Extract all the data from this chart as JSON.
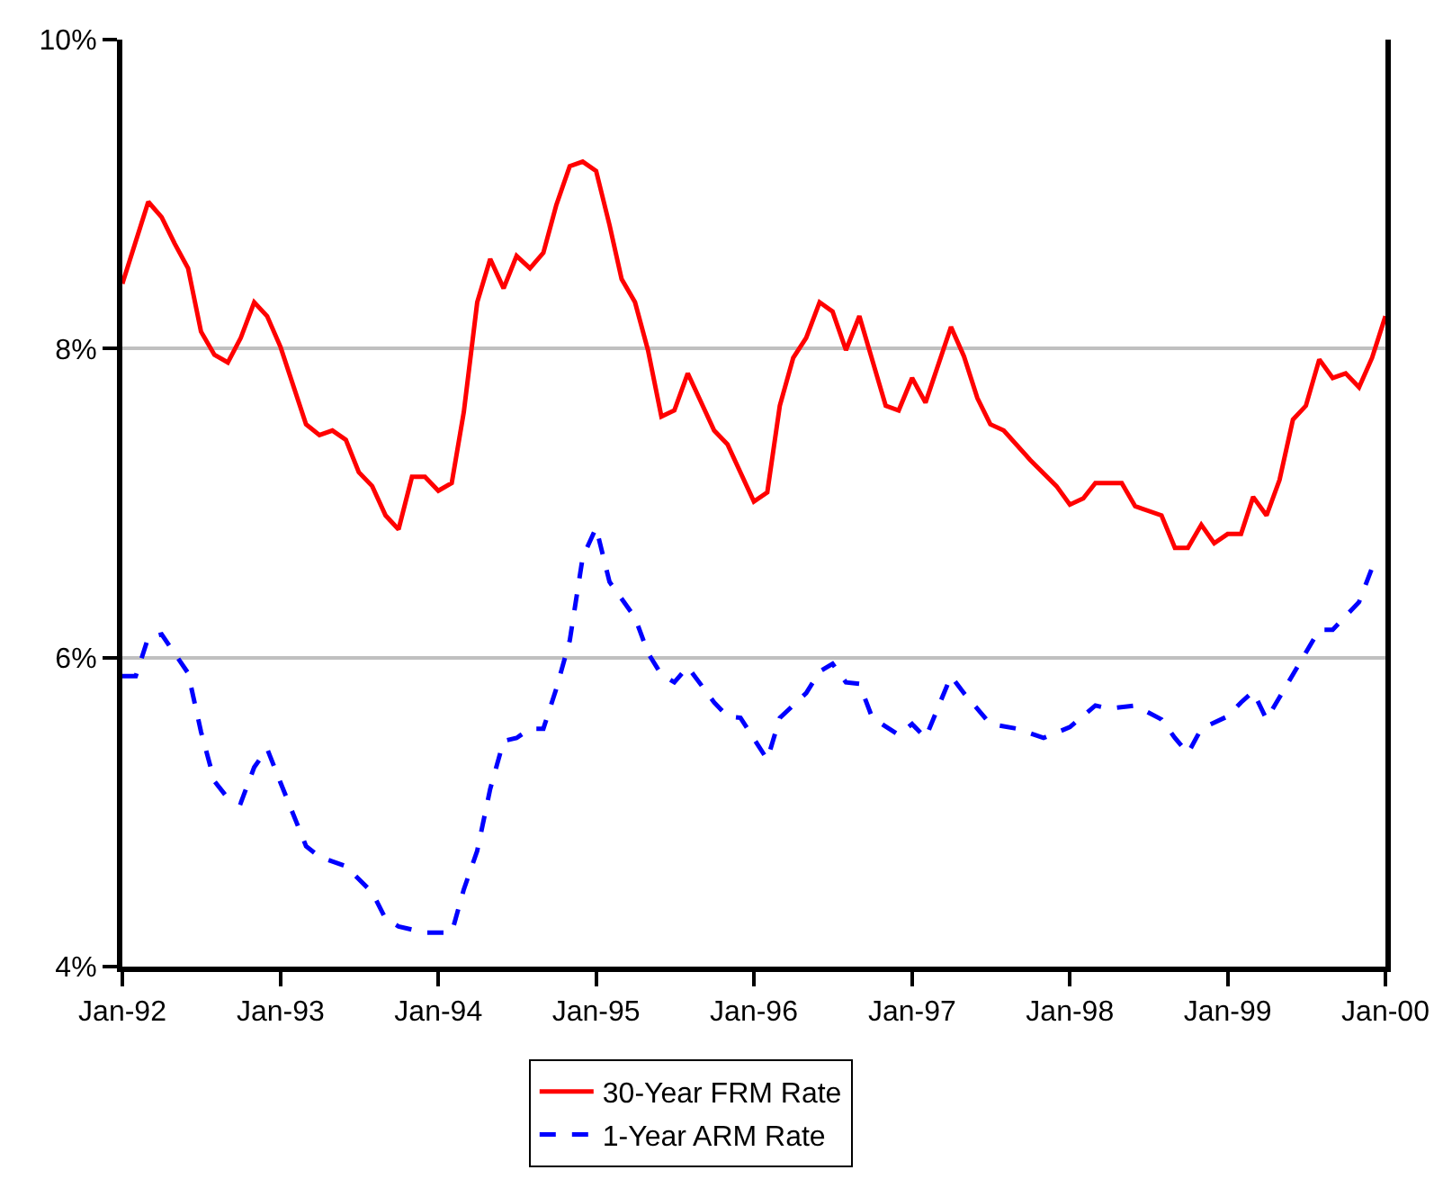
{
  "chart_data": {
    "type": "line",
    "xlim": [
      "1992-01",
      "2000-01"
    ],
    "xticks": [
      {
        "value": "1992-01",
        "label": "Jan-92"
      },
      {
        "value": "1993-01",
        "label": "Jan-93"
      },
      {
        "value": "1994-01",
        "label": "Jan-94"
      },
      {
        "value": "1995-01",
        "label": "Jan-95"
      },
      {
        "value": "1996-01",
        "label": "Jan-96"
      },
      {
        "value": "1997-01",
        "label": "Jan-97"
      },
      {
        "value": "1998-01",
        "label": "Jan-98"
      },
      {
        "value": "1999-01",
        "label": "Jan-99"
      },
      {
        "value": "2000-01",
        "label": "Jan-00"
      }
    ],
    "ylim": [
      4,
      10
    ],
    "yticks": [
      {
        "value": 4,
        "label": "4%"
      },
      {
        "value": 6,
        "label": "6%"
      },
      {
        "value": 8,
        "label": "8%"
      },
      {
        "value": 10,
        "label": "10%"
      }
    ],
    "grid": "y",
    "legend": "bottom",
    "marker": "none",
    "series": [
      {
        "name": "30-Year FRM Rate",
        "color": "#ff0000",
        "line_style": "solid",
        "x": [
          "1992-01",
          "1992-03",
          "1992-04",
          "1992-05",
          "1992-06",
          "1992-07",
          "1992-08",
          "1992-09",
          "1992-10",
          "1992-11",
          "1992-12",
          "1993-01",
          "1993-03",
          "1993-04",
          "1993-05",
          "1993-06",
          "1993-07",
          "1993-08",
          "1993-09",
          "1993-10",
          "1993-11",
          "1993-12",
          "1994-01",
          "1994-02",
          "1994-03",
          "1994-04",
          "1994-05",
          "1994-06",
          "1994-07",
          "1994-08",
          "1994-09",
          "1994-10",
          "1994-11",
          "1994-12",
          "1995-01",
          "1995-02",
          "1995-03",
          "1995-04",
          "1995-05",
          "1995-06",
          "1995-07",
          "1995-08",
          "1995-10",
          "1995-11",
          "1996-01",
          "1996-02",
          "1996-03",
          "1996-04",
          "1996-05",
          "1996-06",
          "1996-07",
          "1996-08",
          "1996-09",
          "1996-11",
          "1996-12",
          "1997-01",
          "1997-02",
          "1997-04",
          "1997-05",
          "1997-06",
          "1997-07",
          "1997-08",
          "1997-10",
          "1997-12",
          "1998-01",
          "1998-02",
          "1998-03",
          "1998-05",
          "1998-06",
          "1998-08",
          "1998-09",
          "1998-10",
          "1998-11",
          "1998-12",
          "1999-01",
          "1999-02",
          "1999-03",
          "1999-04",
          "1999-05",
          "1999-06",
          "1999-07",
          "1999-08",
          "1999-09",
          "1999-10",
          "1999-11",
          "1999-12",
          "2000-01"
        ],
        "values": [
          8.42,
          8.95,
          8.85,
          8.68,
          8.52,
          8.11,
          7.96,
          7.91,
          8.07,
          8.3,
          8.21,
          8.01,
          7.51,
          7.44,
          7.47,
          7.41,
          7.2,
          7.11,
          6.92,
          6.83,
          7.17,
          7.17,
          7.08,
          7.13,
          7.59,
          8.3,
          8.58,
          8.39,
          8.6,
          8.52,
          8.62,
          8.93,
          9.18,
          9.21,
          9.15,
          8.8,
          8.45,
          8.3,
          7.99,
          7.56,
          7.6,
          7.84,
          7.47,
          7.38,
          7.01,
          7.07,
          7.63,
          7.94,
          8.07,
          8.3,
          8.24,
          7.99,
          8.21,
          7.63,
          7.6,
          7.81,
          7.65,
          8.14,
          7.95,
          7.68,
          7.51,
          7.47,
          7.28,
          7.11,
          6.99,
          7.03,
          7.13,
          7.13,
          6.98,
          6.92,
          6.71,
          6.71,
          6.86,
          6.74,
          6.8,
          6.8,
          7.04,
          6.92,
          7.15,
          7.54,
          7.63,
          7.93,
          7.81,
          7.84,
          7.75,
          7.94,
          8.21
        ]
      },
      {
        "name": "1-Year ARM Rate",
        "color": "#0000ff",
        "line_style": "dashed",
        "x": [
          "1992-01",
          "1992-02",
          "1992-03",
          "1992-04",
          "1992-06",
          "1992-07",
          "1992-08",
          "1992-09",
          "1992-10",
          "1992-11",
          "1992-12",
          "1993-01",
          "1993-03",
          "1993-04",
          "1993-06",
          "1993-08",
          "1993-09",
          "1993-10",
          "1993-12",
          "1994-02",
          "1994-03",
          "1994-04",
          "1994-05",
          "1994-06",
          "1994-07",
          "1994-08",
          "1994-09",
          "1994-10",
          "1994-11",
          "1994-12",
          "1995-01",
          "1995-02",
          "1995-04",
          "1995-05",
          "1995-06",
          "1995-07",
          "1995-08",
          "1995-10",
          "1995-11",
          "1995-12",
          "1996-02",
          "1996-03",
          "1996-05",
          "1996-06",
          "1996-07",
          "1996-08",
          "1996-09",
          "1996-10",
          "1996-12",
          "1997-01",
          "1997-02",
          "1997-04",
          "1997-05",
          "1997-07",
          "1997-09",
          "1997-11",
          "1998-01",
          "1998-03",
          "1998-04",
          "1998-06",
          "1998-08",
          "1998-09",
          "1998-10",
          "1998-11",
          "1999-01",
          "1999-02",
          "1999-03",
          "1999-04",
          "1999-06",
          "1999-08",
          "1999-09",
          "1999-11",
          "1999-12",
          "2000-01"
        ],
        "values": [
          5.88,
          5.88,
          6.13,
          6.15,
          5.9,
          5.52,
          5.2,
          5.09,
          5.06,
          5.29,
          5.41,
          5.19,
          4.78,
          4.71,
          4.65,
          4.48,
          4.31,
          4.26,
          4.22,
          4.22,
          4.5,
          4.75,
          5.15,
          5.46,
          5.48,
          5.54,
          5.54,
          5.8,
          6.11,
          6.65,
          6.84,
          6.49,
          6.26,
          6.03,
          5.89,
          5.84,
          5.94,
          5.71,
          5.62,
          5.61,
          5.34,
          5.61,
          5.77,
          5.91,
          5.96,
          5.84,
          5.83,
          5.61,
          5.5,
          5.57,
          5.48,
          5.88,
          5.77,
          5.57,
          5.54,
          5.48,
          5.55,
          5.69,
          5.67,
          5.69,
          5.6,
          5.48,
          5.38,
          5.54,
          5.62,
          5.71,
          5.78,
          5.6,
          5.89,
          6.18,
          6.18,
          6.36,
          6.58,
          6.6
        ]
      }
    ]
  }
}
